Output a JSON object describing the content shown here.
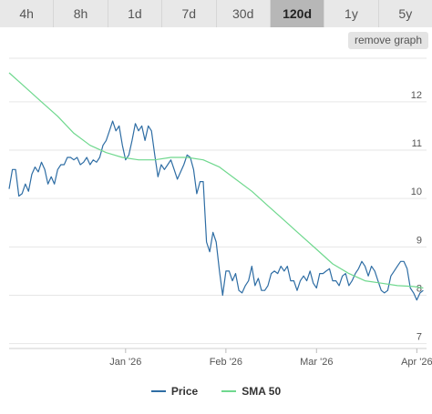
{
  "tabs": [
    {
      "label": "4h"
    },
    {
      "label": "8h"
    },
    {
      "label": "1d"
    },
    {
      "label": "7d"
    },
    {
      "label": "30d"
    },
    {
      "label": "120d",
      "active": true
    },
    {
      "label": "1y"
    },
    {
      "label": "5y"
    }
  ],
  "remove_graph_label": "remove graph",
  "colors": {
    "price": "#2e6da4",
    "sma": "#6fd88e",
    "grid": "#e6e6e6"
  },
  "chart_data": {
    "type": "line",
    "ylim": [
      6.9,
      12.9
    ],
    "y_ticks": [
      7,
      8,
      9,
      10,
      11,
      12
    ],
    "x_ticks": [
      {
        "label": "Jan '26",
        "x": 36
      },
      {
        "label": "Feb '26",
        "x": 67
      },
      {
        "label": "Mar '26",
        "x": 95
      },
      {
        "label": "Apr '26",
        "x": 126
      }
    ],
    "xlim": [
      0,
      129
    ],
    "grid": true,
    "legend_position": "bottom",
    "series": [
      {
        "name": "Price",
        "x": [
          0,
          1,
          2,
          3,
          4,
          5,
          6,
          7,
          8,
          9,
          10,
          11,
          12,
          13,
          14,
          15,
          16,
          17,
          18,
          19,
          20,
          21,
          22,
          23,
          24,
          25,
          26,
          27,
          28,
          29,
          30,
          31,
          32,
          33,
          34,
          35,
          36,
          37,
          38,
          39,
          40,
          41,
          42,
          43,
          44,
          45,
          46,
          47,
          48,
          49,
          50,
          51,
          52,
          53,
          54,
          55,
          56,
          57,
          58,
          59,
          60,
          61,
          62,
          63,
          64,
          65,
          66,
          67,
          68,
          69,
          70,
          71,
          72,
          73,
          74,
          75,
          76,
          77,
          78,
          79,
          80,
          81,
          82,
          83,
          84,
          85,
          86,
          87,
          88,
          89,
          90,
          91,
          92,
          93,
          94,
          95,
          96,
          97,
          98,
          99,
          100,
          101,
          102,
          103,
          104,
          105,
          106,
          107,
          108,
          109,
          110,
          111,
          112,
          113,
          114,
          115,
          116,
          117,
          118,
          119,
          120,
          121,
          122,
          123,
          124,
          125,
          126,
          127,
          128
        ],
        "values": [
          10.2,
          10.6,
          10.6,
          10.05,
          10.1,
          10.3,
          10.15,
          10.5,
          10.65,
          10.55,
          10.75,
          10.6,
          10.3,
          10.45,
          10.3,
          10.6,
          10.7,
          10.7,
          10.85,
          10.85,
          10.8,
          10.85,
          10.7,
          10.75,
          10.85,
          10.7,
          10.8,
          10.75,
          10.85,
          11.1,
          11.2,
          11.4,
          11.6,
          11.4,
          11.5,
          11.1,
          10.8,
          10.9,
          11.2,
          11.55,
          11.4,
          11.5,
          11.2,
          11.5,
          11.4,
          10.9,
          10.45,
          10.7,
          10.6,
          10.7,
          10.8,
          10.6,
          10.4,
          10.55,
          10.7,
          10.9,
          10.85,
          10.6,
          10.1,
          10.35,
          10.35,
          9.1,
          8.9,
          9.3,
          9.1,
          8.5,
          8,
          8.5,
          8.5,
          8.3,
          8.45,
          8.1,
          8.05,
          8.2,
          8.3,
          8.6,
          8.2,
          8.35,
          8.1,
          8.1,
          8.2,
          8.45,
          8.5,
          8.45,
          8.6,
          8.5,
          8.6,
          8.3,
          8.3,
          8.1,
          8.3,
          8.4,
          8.3,
          8.5,
          8.25,
          8.15,
          8.45,
          8.45,
          8.5,
          8.55,
          8.3,
          8.3,
          8.2,
          8.4,
          8.45,
          8.2,
          8.3,
          8.45,
          8.55,
          8.7,
          8.6,
          8.4,
          8.6,
          8.5,
          8.3,
          8.1,
          8.05,
          8.1,
          8.4,
          8.5,
          8.6,
          8.7,
          8.7,
          8.55,
          8.15,
          8.05,
          7.9,
          8.05,
          8.1
        ],
        "comment": ""
      },
      {
        "name": "SMA 50",
        "x": [
          0,
          5,
          10,
          15,
          20,
          25,
          30,
          35,
          40,
          45,
          50,
          55,
          60,
          65,
          70,
          75,
          80,
          85,
          90,
          95,
          100,
          105,
          110,
          115,
          120,
          125,
          128
        ],
        "values": [
          12.6,
          12.3,
          12,
          11.7,
          11.35,
          11.1,
          10.95,
          10.85,
          10.8,
          10.8,
          10.85,
          10.85,
          10.8,
          10.65,
          10.4,
          10.15,
          9.85,
          9.55,
          9.25,
          8.95,
          8.65,
          8.45,
          8.3,
          8.25,
          8.2,
          8.18,
          8.15
        ]
      }
    ]
  }
}
